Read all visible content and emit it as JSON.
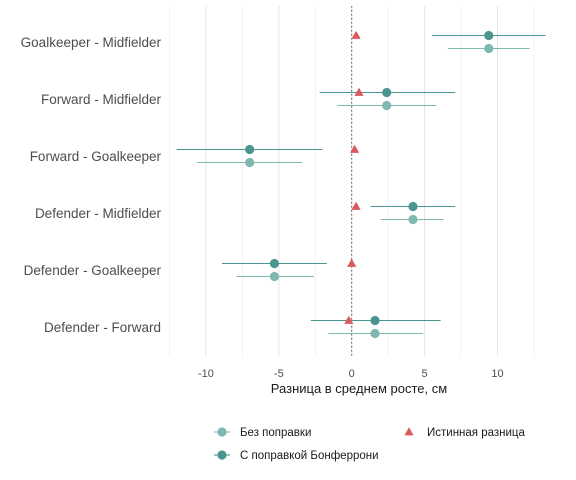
{
  "chart_data": {
    "type": "scatter",
    "orientation": "horizontal",
    "title": "",
    "xlabel": "Разница в среднем росте, см",
    "ylabel": "",
    "xlim": [
      -12.6,
      13.6
    ],
    "xticks": [
      -10,
      -5,
      0,
      5,
      10
    ],
    "grid": true,
    "reference_line": {
      "x": 0,
      "style": "dotted"
    },
    "legend_position": "bottom",
    "categories": [
      "Goalkeeper - Midfielder",
      "Forward - Midfielder",
      "Forward - Goalkeeper",
      "Defender - Midfielder",
      "Defender - Goalkeeper",
      "Defender - Forward"
    ],
    "series": [
      {
        "name": "Без поправки",
        "marker": "circle",
        "color": "#7fb8b1",
        "estimate": [
          9.4,
          2.4,
          -7.0,
          4.2,
          -5.3,
          1.6
        ],
        "lower": [
          6.6,
          -1.0,
          -10.6,
          2.0,
          -7.9,
          -1.6
        ],
        "upper": [
          12.2,
          5.8,
          -3.4,
          6.3,
          -2.6,
          4.9
        ]
      },
      {
        "name": "С поправкой Бонферрони",
        "marker": "circle",
        "color": "#4a9590",
        "estimate": [
          9.4,
          2.4,
          -7.0,
          4.2,
          -5.3,
          1.6
        ],
        "lower": [
          5.5,
          -2.2,
          -12.0,
          1.3,
          -8.9,
          -2.8
        ],
        "upper": [
          13.3,
          7.1,
          -2.0,
          7.1,
          -1.7,
          6.1
        ]
      },
      {
        "name": "Истинная разница",
        "marker": "triangle",
        "color": "#d9595d",
        "estimate": [
          0.3,
          0.5,
          0.2,
          0.3,
          0.0,
          -0.2
        ]
      }
    ]
  }
}
